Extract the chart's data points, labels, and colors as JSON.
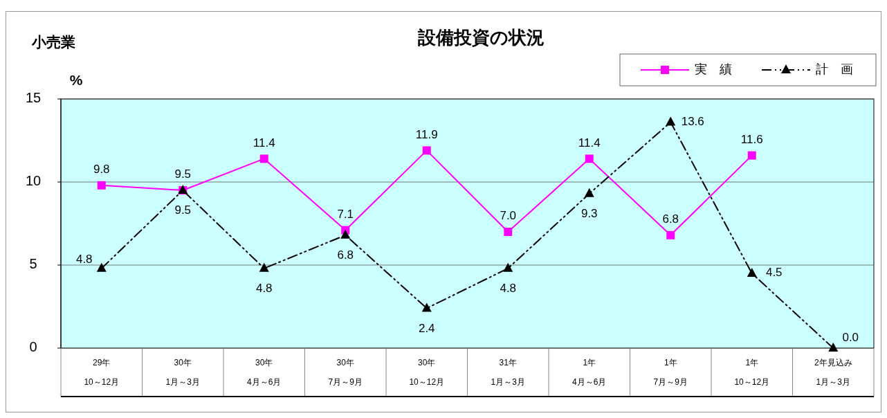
{
  "chart_data": {
    "type": "line",
    "title": "設備投資の状況",
    "subtitle": "小売業",
    "ylabel": "%",
    "categories": [
      "29年\n10～12月",
      "30年\n1月～3月",
      "30年\n4月～6月",
      "30年\n7月～9月",
      "30年\n10～12月",
      "31年\n1月～3月",
      "1年\n4月～6月",
      "1年\n7月～9月",
      "1年\n10～12月",
      "2年見込み\n1月～3月"
    ],
    "series": [
      {
        "name": "実　績",
        "color": "#ff00ff",
        "marker": "square",
        "line_style": "solid",
        "values": [
          9.8,
          9.5,
          11.4,
          7.1,
          11.9,
          7.0,
          11.4,
          6.8,
          11.6,
          null
        ],
        "value_labels": [
          "9.8",
          "9.5",
          "11.4",
          "7.1",
          "11.9",
          "7.0",
          "11.4",
          "6.8",
          "11.6",
          null
        ]
      },
      {
        "name": "計　画",
        "color": "#000000",
        "marker": "triangle",
        "line_style": "dashed",
        "values": [
          4.8,
          9.5,
          4.8,
          6.8,
          2.4,
          4.8,
          9.3,
          13.6,
          4.5,
          0.0
        ],
        "value_labels": [
          "4.8",
          "9.5",
          "4.8",
          "6.8",
          "2.4",
          "4.8",
          "9.3",
          "13.6",
          "4.5",
          "0.0"
        ]
      }
    ],
    "ylim": [
      0,
      15
    ],
    "yticks": [
      0,
      5,
      10,
      15
    ],
    "grid": "y",
    "legend": "top right"
  }
}
